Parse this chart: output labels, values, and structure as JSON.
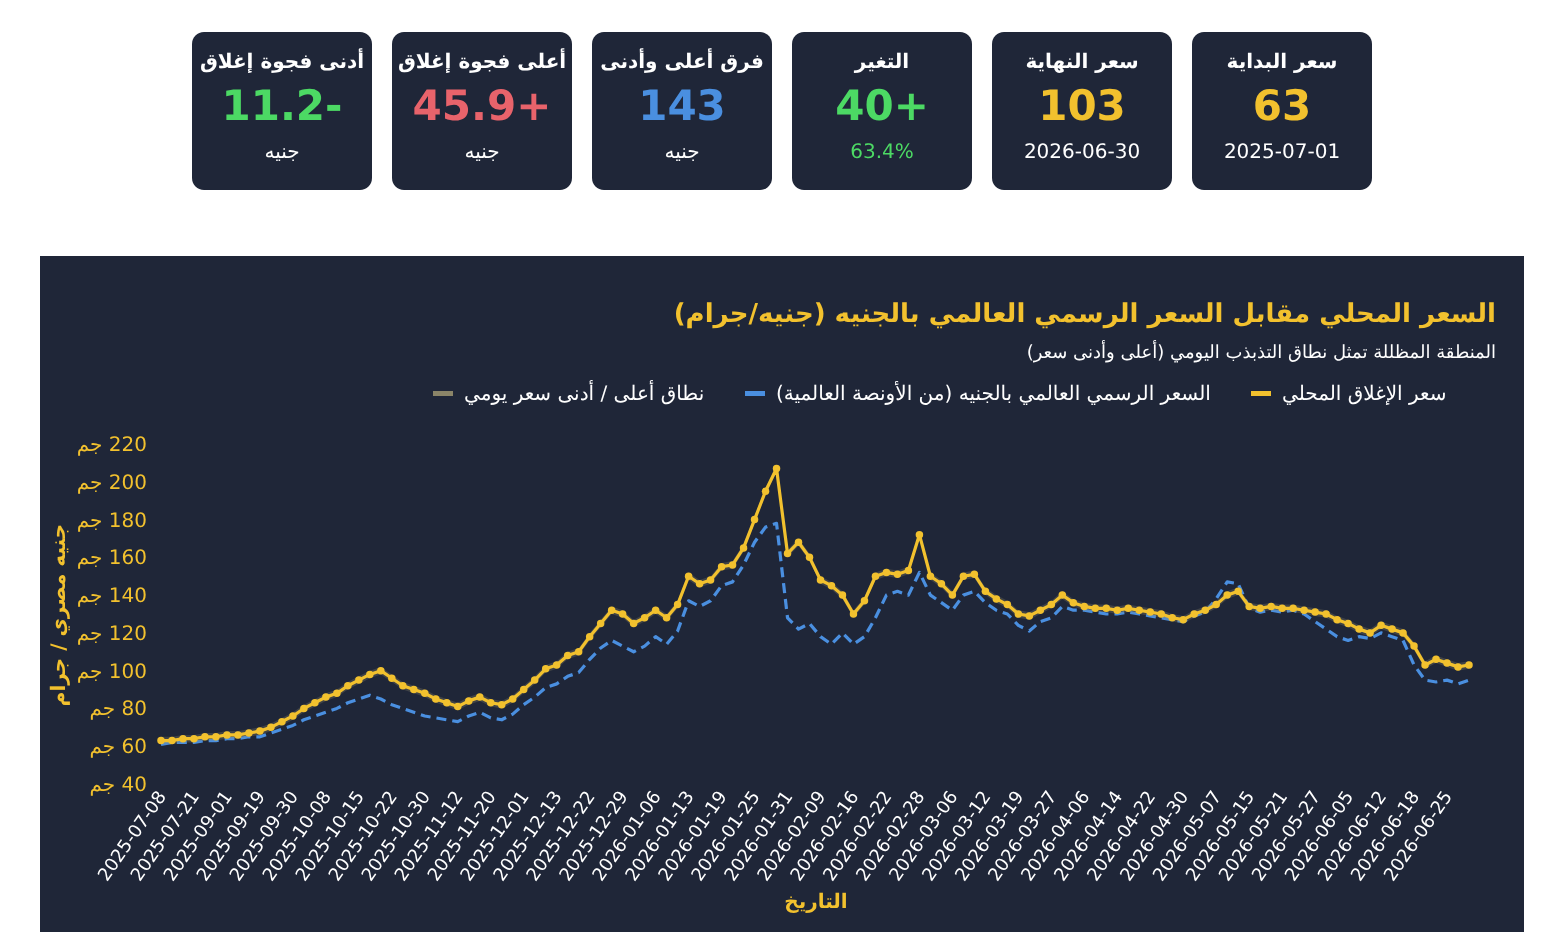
{
  "chart_data": [
    {
      "type": "other",
      "annotations": [
        "سعر البداية",
        "63",
        "2025-07-01",
        "سعر النهاية",
        "103",
        "2026-06-30",
        "التغير",
        "40+",
        "63.4%",
        "فرق أعلى وأدنى",
        "143",
        "جنيه",
        "أعلى فجوة إغلاق",
        "45.9+",
        "جنيه",
        "أدنى فجوة إغلاق",
        "11.2-",
        "جنيه"
      ]
    },
    {
      "type": "line",
      "title": "السعر المحلي مقابل السعر الرسمي العالمي بالجنيه (جنيه/جرام)",
      "subtitle": "المنطقة المظللة تمثل نطاق التذبذب اليومي (أعلى وأدنى سعر)",
      "xlabel": "التاريخ",
      "ylabel": "جنيه مصري / جرام",
      "annotations": [
        "نطاق أعلى / أدنى سعر يومي"
      ],
      "categories": [
        "2025-07-08",
        null,
        null,
        "2025-07-21",
        null,
        null,
        "2025-09-01",
        null,
        null,
        "2025-09-19",
        null,
        null,
        "2025-09-30",
        null,
        null,
        "2025-10-08",
        null,
        null,
        "2025-10-15",
        null,
        null,
        "2025-10-22",
        null,
        null,
        "2025-10-30",
        null,
        null,
        "2025-11-12",
        null,
        null,
        "2025-11-20",
        null,
        null,
        "2025-12-01",
        null,
        null,
        "2025-12-13",
        null,
        null,
        "2025-12-22",
        null,
        null,
        "2025-12-29",
        null,
        null,
        "2026-01-06",
        null,
        null,
        "2026-01-13",
        null,
        null,
        "2026-01-19",
        null,
        null,
        "2026-01-25",
        null,
        null,
        "2026-01-31",
        null,
        null,
        "2026-02-09",
        null,
        null,
        "2026-02-16",
        null,
        null,
        "2026-02-22",
        null,
        null,
        "2026-02-28",
        null,
        null,
        "2026-03-06",
        null,
        null,
        "2026-03-12",
        null,
        null,
        "2026-03-19",
        null,
        null,
        "2026-03-27",
        null,
        null,
        "2026-04-06",
        null,
        null,
        "2026-04-14",
        null,
        null,
        "2026-04-22",
        null,
        null,
        "2026-04-30",
        null,
        null,
        "2026-05-07",
        null,
        null,
        "2026-05-15",
        null,
        null,
        "2026-05-21",
        null,
        null,
        "2026-05-27",
        null,
        null,
        "2026-06-05",
        null,
        null,
        "2026-06-12",
        null,
        null,
        "2026-06-18",
        null,
        null,
        "2026-06-25",
        null,
        null
      ],
      "series": [
        {
          "name": "السعر الرسمي العالمي بالجنيه (من الأونصة العالمية)",
          "type": "line",
          "color": "#4a8fe0",
          "line_style": "dashed",
          "marker": "none",
          "values": [
            61,
            62,
            62,
            62,
            63,
            63,
            64,
            64,
            65,
            65,
            67,
            69,
            71,
            74,
            76,
            78,
            80,
            83,
            85,
            87,
            85,
            82,
            80,
            78,
            76,
            75,
            74,
            73,
            76,
            78,
            75,
            74,
            77,
            82,
            86,
            91,
            93,
            97,
            99,
            106,
            112,
            116,
            113,
            110,
            113,
            118,
            114,
            121,
            137,
            134,
            137,
            145,
            147,
            156,
            168,
            176,
            178,
            128,
            122,
            125,
            118,
            114,
            120,
            114,
            118,
            128,
            140,
            142,
            140,
            152,
            140,
            136,
            132,
            140,
            142,
            136,
            132,
            130,
            124,
            121,
            126,
            128,
            134,
            132,
            132,
            131,
            130,
            130,
            131,
            130,
            129,
            128,
            127,
            126,
            129,
            131,
            138,
            147,
            146,
            133,
            131,
            132,
            131,
            132,
            130,
            126,
            122,
            118,
            116,
            118,
            117,
            120,
            118,
            116,
            103,
            95,
            94,
            95,
            93,
            95
          ]
        },
        {
          "name": "سعر الإغلاق المحلي",
          "type": "line",
          "color": "#f2c12e",
          "line_style": "solid",
          "marker": "circle",
          "values": [
            63,
            63,
            64,
            64,
            65,
            65,
            66,
            66,
            67,
            68,
            70,
            73,
            76,
            80,
            83,
            86,
            88,
            92,
            95,
            98,
            100,
            96,
            92,
            90,
            88,
            85,
            83,
            81,
            84,
            86,
            83,
            82,
            85,
            90,
            95,
            101,
            103,
            108,
            110,
            118,
            125,
            132,
            130,
            125,
            128,
            132,
            128,
            135,
            150,
            146,
            148,
            155,
            156,
            165,
            180,
            195,
            207,
            162,
            168,
            160,
            148,
            145,
            140,
            130,
            137,
            150,
            152,
            151,
            153,
            172,
            150,
            146,
            140,
            150,
            151,
            142,
            138,
            135,
            130,
            129,
            132,
            135,
            140,
            136,
            134,
            133,
            133,
            132,
            133,
            132,
            131,
            130,
            128,
            127,
            130,
            132,
            135,
            140,
            142,
            134,
            133,
            134,
            133,
            133,
            132,
            131,
            130,
            127,
            125,
            122,
            120,
            124,
            122,
            120,
            113,
            103,
            106,
            104,
            102,
            103
          ],
          "lower": [
            61,
            61,
            62,
            62,
            63,
            63,
            64,
            64,
            65,
            66,
            68,
            71,
            74,
            78,
            81,
            84,
            86,
            90,
            93,
            96,
            98,
            94,
            90,
            88,
            86,
            83,
            81,
            79,
            82,
            84,
            81,
            80,
            83,
            88,
            93,
            99,
            101,
            106,
            108,
            116,
            123,
            130,
            128,
            123,
            126,
            130,
            126,
            133,
            148,
            144,
            146,
            153,
            154,
            163,
            178,
            193,
            205,
            160,
            166,
            158,
            146,
            143,
            138,
            128,
            135,
            148,
            150,
            149,
            151,
            170,
            148,
            144,
            138,
            148,
            149,
            140,
            136,
            133,
            128,
            127,
            130,
            133,
            138,
            134,
            132,
            131,
            131,
            130,
            131,
            130,
            129,
            128,
            126,
            125,
            128,
            130,
            133,
            138,
            140,
            132,
            131,
            132,
            131,
            131,
            130,
            129,
            128,
            125,
            123,
            120,
            118,
            122,
            120,
            118,
            111,
            101,
            104,
            102,
            100,
            101
          ],
          "upper": [
            65,
            65,
            66,
            66,
            67,
            67,
            68,
            68,
            69,
            70,
            72,
            75,
            78,
            82,
            85,
            88,
            90,
            94,
            97,
            100,
            102,
            98,
            94,
            92,
            90,
            87,
            85,
            83,
            86,
            88,
            85,
            84,
            87,
            92,
            97,
            103,
            105,
            110,
            112,
            120,
            127,
            134,
            132,
            127,
            130,
            134,
            130,
            137,
            152,
            148,
            150,
            157,
            158,
            167,
            182,
            197,
            209,
            164,
            170,
            162,
            150,
            147,
            142,
            132,
            139,
            152,
            154,
            153,
            155,
            174,
            152,
            148,
            142,
            152,
            153,
            144,
            140,
            137,
            132,
            131,
            134,
            137,
            142,
            138,
            136,
            135,
            135,
            134,
            135,
            134,
            133,
            132,
            130,
            129,
            132,
            134,
            137,
            142,
            144,
            136,
            135,
            136,
            135,
            135,
            134,
            133,
            132,
            129,
            127,
            124,
            122,
            126,
            124,
            122,
            115,
            105,
            108,
            106,
            104,
            105
          ]
        }
      ],
      "ylim": [
        40,
        220
      ],
      "yticks": [
        {
          "value": 40,
          "label": "40 جم"
        },
        {
          "value": 60,
          "label": "60 جم"
        },
        {
          "value": 80,
          "label": "80 جم"
        },
        {
          "value": 100,
          "label": "100 جم"
        },
        {
          "value": 120,
          "label": "120 جم"
        },
        {
          "value": 140,
          "label": "140 جم"
        },
        {
          "value": 160,
          "label": "160 جم"
        },
        {
          "value": 180,
          "label": "180 جم"
        },
        {
          "value": 200,
          "label": "200 جم"
        },
        {
          "value": 220,
          "label": "220 جم"
        }
      ],
      "legend": "top right"
    }
  ]
}
